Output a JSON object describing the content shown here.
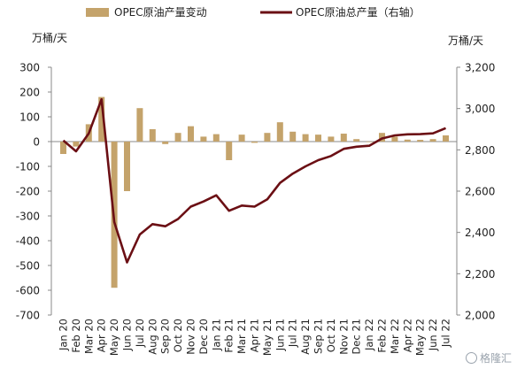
{
  "chart_data": {
    "type": "bar+line",
    "legend": {
      "bar_label": "OPEC原油产量变动",
      "line_label": "OPEC原油总产量（右轴）",
      "placement": "top"
    },
    "y_left": {
      "unit": "万桶/天",
      "min": -700,
      "max": 300,
      "step": 100,
      "ticks": [
        "300",
        "200",
        "100",
        "0",
        "-100",
        "-200",
        "-300",
        "-400",
        "-500",
        "-600",
        "-700"
      ]
    },
    "y_right": {
      "unit": "万桶/天",
      "min": 2000,
      "max": 3200,
      "step": 200,
      "ticks": [
        "3,200",
        "3,000",
        "2,800",
        "2,600",
        "2,400",
        "2,200",
        "2,000"
      ]
    },
    "categories": [
      "Jan 20",
      "Feb 20",
      "Mar 20",
      "Apr 20",
      "May 20",
      "Jun 20",
      "Jul 20",
      "Aug 20",
      "Sep 20",
      "Oct 20",
      "Nov 20",
      "Dec 20",
      "Jan 21",
      "Feb 21",
      "Mar 21",
      "Apr 21",
      "May 21",
      "Jun 21",
      "Jul 21",
      "Aug 21",
      "Sep 21",
      "Oct 21",
      "Nov 21",
      "Dec 21",
      "Jan 22",
      "Feb 22",
      "Mar 22",
      "Apr 22",
      "May 22",
      "Jun 22",
      "Jul 22"
    ],
    "series": [
      {
        "name": "OPEC原油产量变动",
        "type": "bar",
        "axis": "left",
        "color": "#c4a36b",
        "values": [
          -50,
          -20,
          70,
          180,
          -590,
          -200,
          135,
          50,
          -10,
          35,
          62,
          20,
          30,
          -75,
          28,
          -5,
          35,
          78,
          40,
          30,
          28,
          20,
          32,
          10,
          0,
          35,
          20,
          8,
          7,
          10,
          25
        ]
      },
      {
        "name": "OPEC原油总产量（右轴）",
        "type": "line",
        "axis": "right",
        "color": "#6b0f14",
        "values": [
          2845,
          2793,
          2880,
          3045,
          2450,
          2255,
          2390,
          2440,
          2430,
          2465,
          2525,
          2550,
          2580,
          2505,
          2530,
          2525,
          2560,
          2640,
          2685,
          2720,
          2750,
          2770,
          2805,
          2815,
          2820,
          2855,
          2870,
          2875,
          2876,
          2880,
          2905
        ]
      }
    ],
    "watermark": "格隆汇"
  }
}
